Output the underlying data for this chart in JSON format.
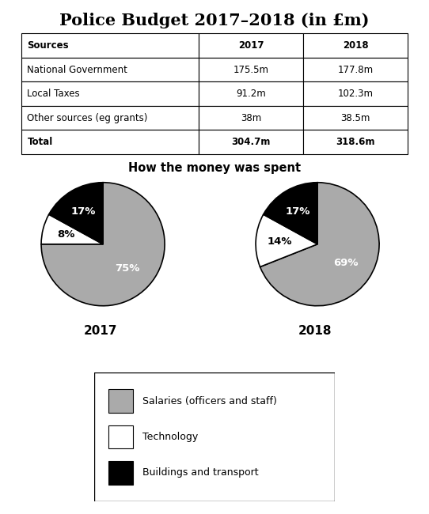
{
  "title": "Police Budget 2017–2018 (in £m)",
  "table": {
    "headers": [
      "Sources",
      "2017",
      "2018"
    ],
    "rows": [
      [
        "National Government",
        "175.5m",
        "177.8m"
      ],
      [
        "Local Taxes",
        "91.2m",
        "102.3m"
      ],
      [
        "Other sources (eg grants)",
        "38m",
        "38.5m"
      ],
      [
        "Total",
        "304.7m",
        "318.6m"
      ]
    ]
  },
  "pie_title": "How the money was spent",
  "pie_2017": {
    "values": [
      75,
      8,
      17
    ],
    "labels": [
      "75%",
      "8%",
      "17%"
    ],
    "label_colors": [
      "white",
      "black",
      "white"
    ],
    "colors": [
      "#aaaaaa",
      "#ffffff",
      "#000000"
    ],
    "year": "2017",
    "startangle": 90,
    "label_radii": [
      0.55,
      0.62,
      0.62
    ]
  },
  "pie_2018": {
    "values": [
      69,
      14,
      17
    ],
    "labels": [
      "69%",
      "14%",
      "17%"
    ],
    "label_colors": [
      "white",
      "black",
      "white"
    ],
    "colors": [
      "#aaaaaa",
      "#ffffff",
      "#000000"
    ],
    "year": "2018",
    "startangle": 90,
    "label_radii": [
      0.55,
      0.62,
      0.62
    ]
  },
  "legend_items": [
    {
      "label": "Salaries (officers and staff)",
      "color": "#aaaaaa"
    },
    {
      "label": "Technology",
      "color": "#ffffff"
    },
    {
      "label": "Buildings and transport",
      "color": "#000000"
    }
  ]
}
